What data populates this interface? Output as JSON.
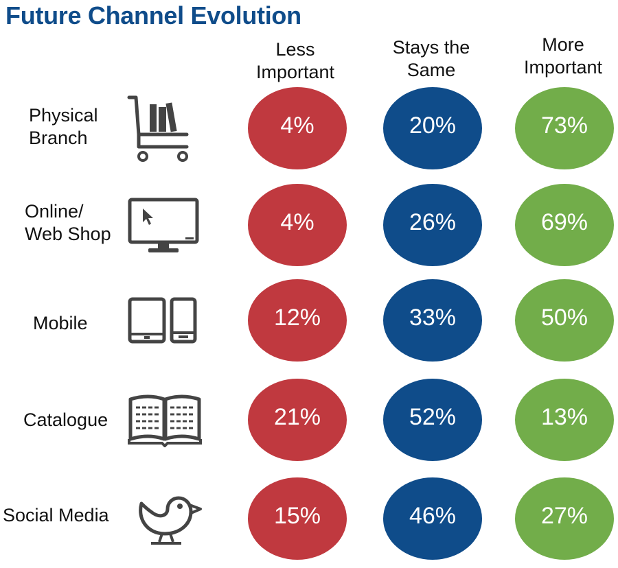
{
  "colors": {
    "title": "#0f4c8a",
    "less": "#c0393f",
    "same": "#0f4c8a",
    "more": "#72ad4a",
    "icon": "#444444"
  },
  "chart_data": {
    "type": "table",
    "title": "Future Channel Evolution",
    "columns": [
      {
        "line1": "Less",
        "line2": "Important"
      },
      {
        "line1": "Stays the",
        "line2": "Same"
      },
      {
        "line1": "More",
        "line2": "Important"
      }
    ],
    "rows": [
      {
        "line1": "Physical",
        "line2": "Branch",
        "icon": "shopping-cart-icon",
        "values": [
          "4%",
          "20%",
          "73%"
        ]
      },
      {
        "line1": "Online/",
        "line2": "Web Shop",
        "icon": "monitor-icon",
        "values": [
          "4%",
          "26%",
          "69%"
        ]
      },
      {
        "line1": "Mobile",
        "line2": "",
        "icon": "tablet-phone-icon",
        "values": [
          "12%",
          "33%",
          "50%"
        ]
      },
      {
        "line1": "Catalogue",
        "line2": "",
        "icon": "open-book-icon",
        "values": [
          "21%",
          "52%",
          "13%"
        ]
      },
      {
        "line1": "Social Media",
        "line2": "",
        "icon": "bird-icon",
        "values": [
          "15%",
          "46%",
          "27%"
        ]
      }
    ]
  }
}
